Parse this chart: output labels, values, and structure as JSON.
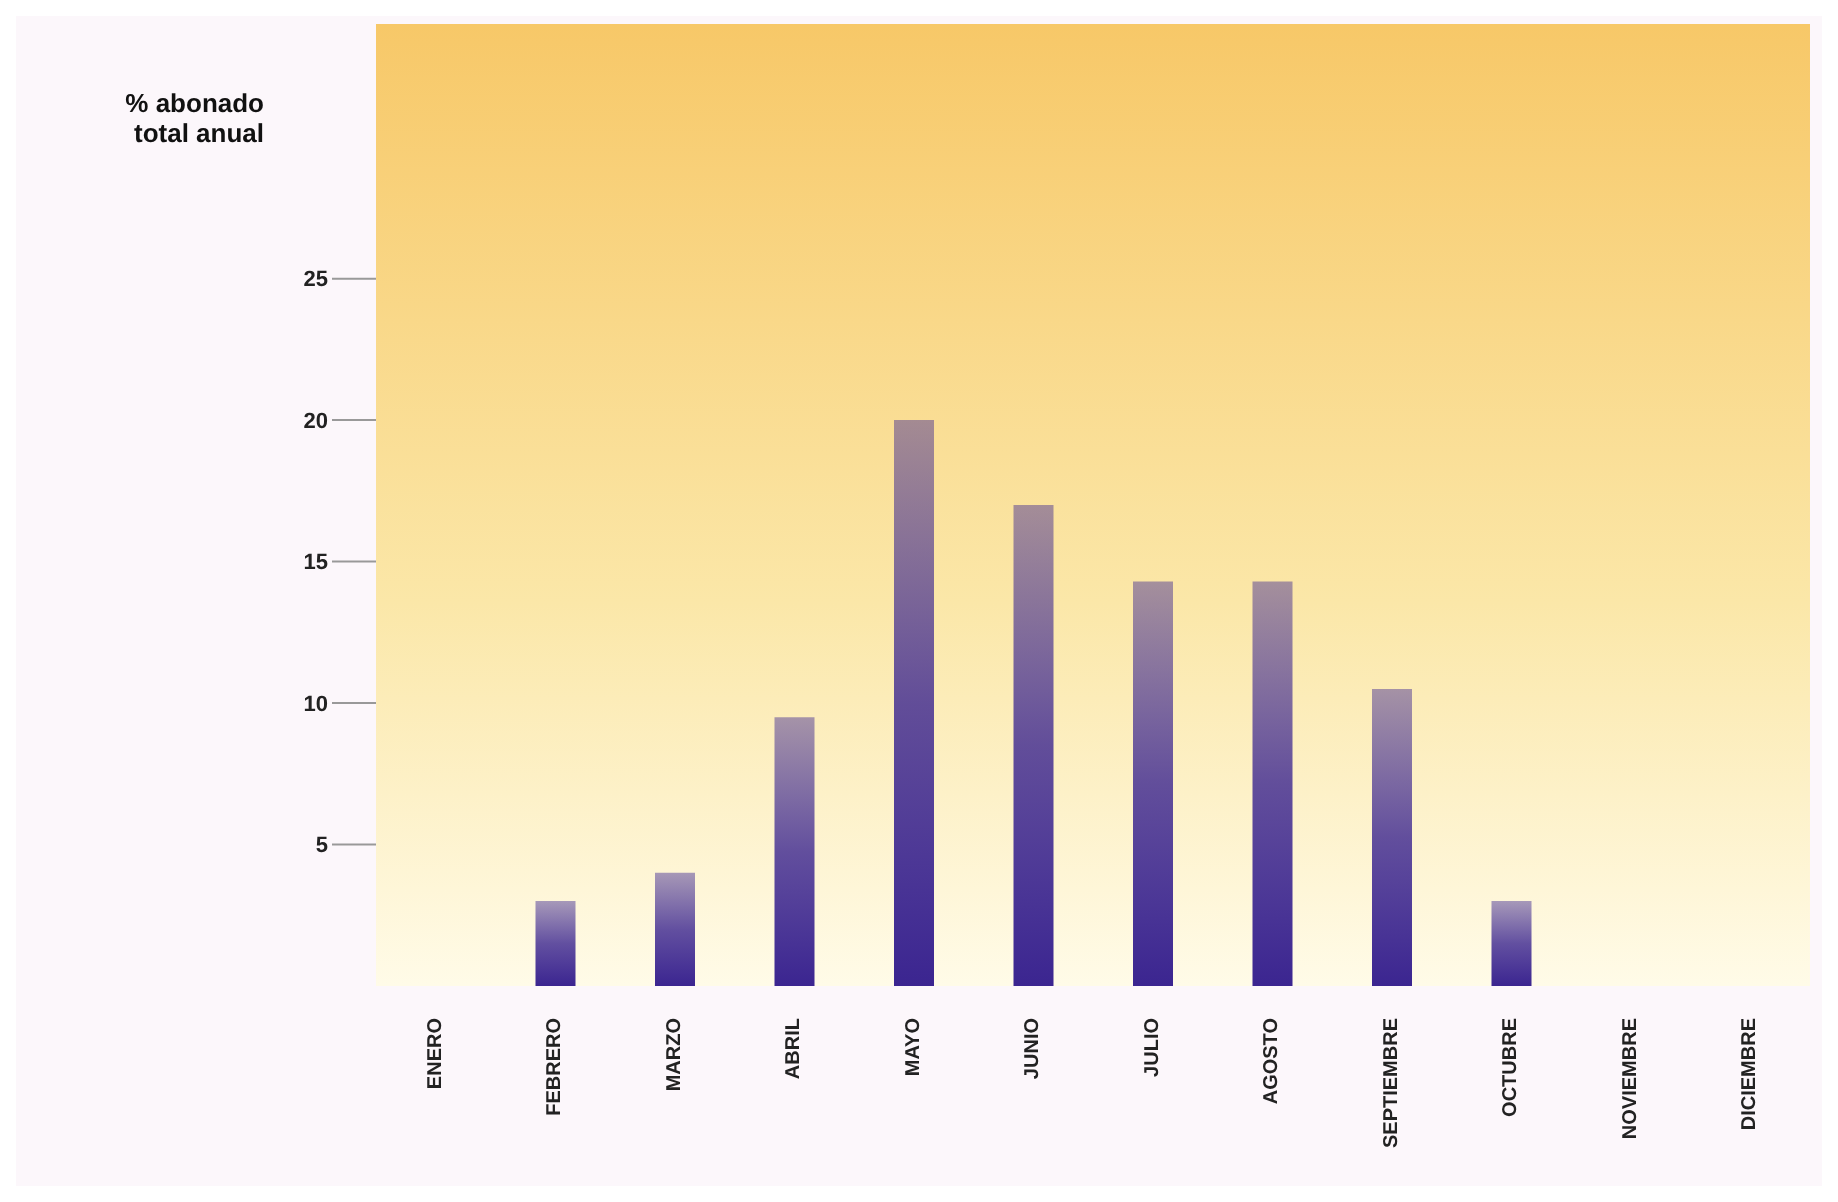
{
  "chart_data": {
    "type": "bar",
    "ylabel": "% abonado total anual",
    "categories": [
      "ENERO",
      "FEBRERO",
      "MARZO",
      "ABRIL",
      "MAYO",
      "JUNIO",
      "JULIO",
      "AGOSTO",
      "SEPTIEMBRE",
      "OCTUBRE",
      "NOVIEMBRE",
      "DICIEMBRE"
    ],
    "values": [
      0,
      3,
      4,
      9.5,
      20,
      17,
      14.3,
      14.3,
      10.5,
      3,
      0,
      0
    ],
    "color": "#3b2590",
    "ylim": [
      0,
      34
    ],
    "yticks": [
      5,
      10,
      15,
      20,
      25
    ]
  }
}
